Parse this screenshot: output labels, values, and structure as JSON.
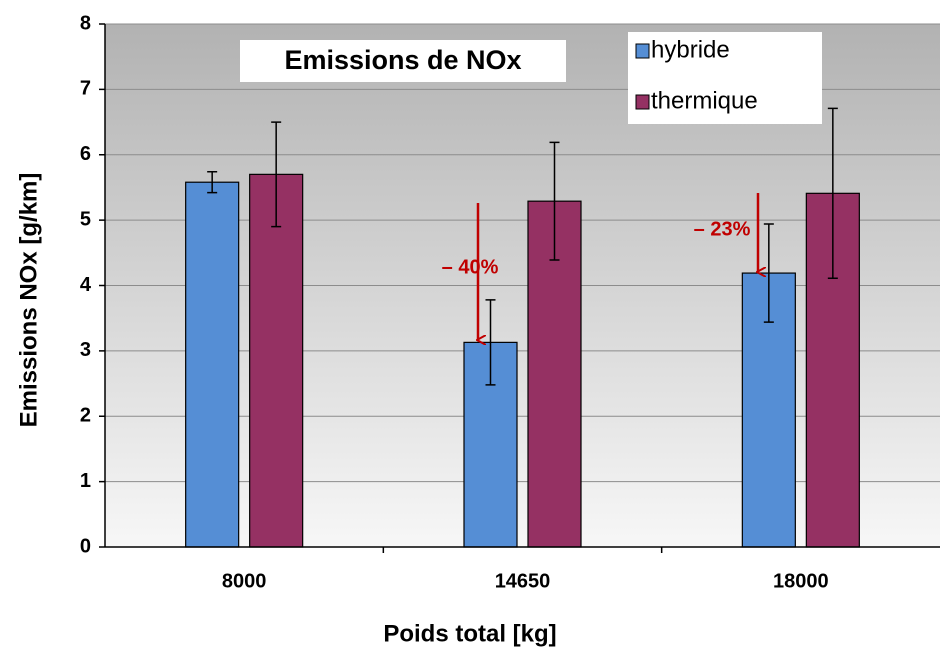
{
  "chart_data": {
    "type": "bar",
    "title": "Emissions de NOx",
    "xlabel": "Poids total [kg]",
    "ylabel": "Emissions NOx [g/km]",
    "categories": [
      "8000",
      "14650",
      "18000"
    ],
    "series": [
      {
        "name": "hybride",
        "color": "#558ed5",
        "values": [
          5.58,
          3.13,
          4.19
        ],
        "errors": [
          0.16,
          0.65,
          0.75
        ]
      },
      {
        "name": "thermique",
        "color": "#953163",
        "values": [
          5.7,
          5.29,
          5.41
        ],
        "errors": [
          0.8,
          0.9,
          1.3
        ]
      }
    ],
    "annotations": [
      "– 40%",
      "– 23%"
    ],
    "ylim": [
      0,
      8
    ],
    "yticks": [
      0,
      1,
      2,
      3,
      4,
      5,
      6,
      7,
      8
    ],
    "grid": true,
    "legend": "top-right"
  }
}
